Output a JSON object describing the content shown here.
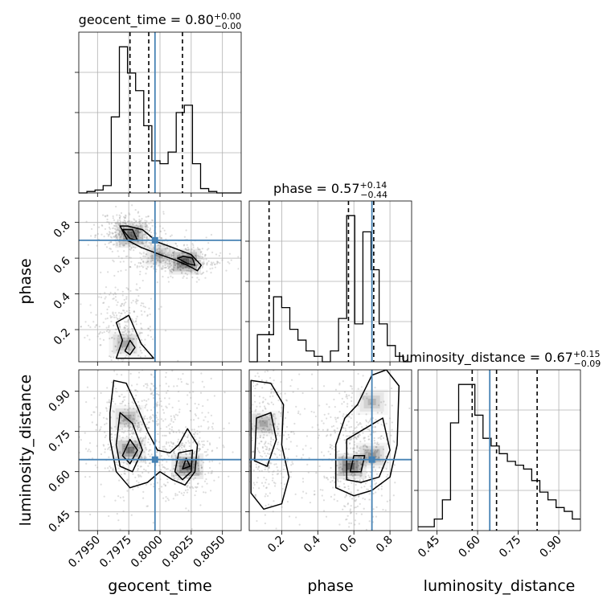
{
  "chart_data": {
    "type": "corner",
    "parameters": [
      "geocent_time",
      "phase",
      "luminosity_distance"
    ],
    "titles": {
      "geocent_time": {
        "label": "geocent_time",
        "median": "0.80",
        "plus": "+0.00",
        "minus": "−0.00"
      },
      "phase": {
        "label": "phase",
        "median": "0.57",
        "plus": "+0.14",
        "minus": "−0.44"
      },
      "luminosity_distance": {
        "label": "luminosity_distance",
        "median": "0.67",
        "plus": "+0.15",
        "minus": "−0.09"
      }
    },
    "injection": {
      "geocent_time": 0.7996,
      "phase": 0.7,
      "luminosity_distance": 0.645
    },
    "ranges": {
      "geocent_time": [
        0.7935,
        0.8065
      ],
      "phase": [
        0.02,
        0.92
      ],
      "luminosity_distance": [
        0.38,
        0.98
      ]
    },
    "axis_ticks": {
      "geocent_time": [
        "0.7950",
        "0.7975",
        "0.8000",
        "0.8025",
        "0.8050"
      ],
      "phase": [
        "0.2",
        "0.4",
        "0.6",
        "0.8"
      ],
      "luminosity_distance": [
        "0.45",
        "0.60",
        "0.75",
        "0.90"
      ]
    },
    "quantiles": {
      "geocent_time": [
        0.7976,
        0.7991,
        0.8018
      ],
      "phase": [
        0.13,
        0.57,
        0.71
      ],
      "luminosity_distance": [
        0.58,
        0.67,
        0.82
      ]
    },
    "histograms": {
      "geocent_time": {
        "edges": [
          0.7935,
          0.79415,
          0.7948,
          0.79545,
          0.7961,
          0.79675,
          0.7974,
          0.79805,
          0.7987,
          0.79935,
          0.8,
          0.80065,
          0.8013,
          0.80195,
          0.8026,
          0.80325,
          0.8039,
          0.80455,
          0.8052,
          0.80585,
          0.8065
        ],
        "counts": [
          0,
          1,
          2,
          5,
          52,
          100,
          82,
          70,
          46,
          22,
          20,
          28,
          55,
          60,
          20,
          3,
          1,
          0,
          0,
          0
        ]
      },
      "phase": {
        "edges": [
          0.02,
          0.065,
          0.11,
          0.155,
          0.2,
          0.245,
          0.29,
          0.335,
          0.38,
          0.425,
          0.47,
          0.515,
          0.56,
          0.605,
          0.65,
          0.695,
          0.74,
          0.785,
          0.83,
          0.875,
          0.92
        ],
        "counts": [
          0,
          5,
          5,
          12,
          10,
          6,
          4,
          2,
          1,
          0,
          2,
          8,
          27,
          7,
          24,
          17,
          7,
          3,
          1,
          0
        ]
      },
      "luminosity_distance": {
        "edges": [
          0.38,
          0.41,
          0.44,
          0.47,
          0.5,
          0.53,
          0.56,
          0.59,
          0.62,
          0.65,
          0.68,
          0.71,
          0.74,
          0.77,
          0.8,
          0.83,
          0.86,
          0.89,
          0.92,
          0.95,
          0.98
        ],
        "counts": [
          1,
          1,
          3,
          8,
          28,
          38,
          38,
          30,
          24,
          22,
          20,
          18,
          17,
          16,
          13,
          10,
          8,
          6,
          5,
          3
        ]
      }
    },
    "contours": {
      "phase|geocent_time": [
        [
          [
            0.7968,
            0.78
          ],
          [
            0.7974,
            0.7
          ],
          [
            0.7985,
            0.66
          ],
          [
            0.8,
            0.62
          ],
          [
            0.8012,
            0.59
          ],
          [
            0.8022,
            0.56
          ],
          [
            0.803,
            0.53
          ],
          [
            0.8033,
            0.56
          ],
          [
            0.8025,
            0.62
          ],
          [
            0.801,
            0.66
          ],
          [
            0.7998,
            0.69
          ],
          [
            0.7986,
            0.76
          ],
          [
            0.7974,
            0.78
          ]
        ],
        [
          [
            0.797,
            0.76
          ],
          [
            0.7976,
            0.71
          ],
          [
            0.7982,
            0.7
          ],
          [
            0.7978,
            0.76
          ]
        ],
        [
          [
            0.8014,
            0.6
          ],
          [
            0.8022,
            0.57
          ],
          [
            0.8028,
            0.56
          ],
          [
            0.8026,
            0.6
          ],
          [
            0.8019,
            0.61
          ]
        ],
        [
          [
            0.7965,
            0.04
          ],
          [
            0.797,
            0.14
          ],
          [
            0.7965,
            0.24
          ],
          [
            0.7975,
            0.28
          ],
          [
            0.798,
            0.2
          ],
          [
            0.7985,
            0.12
          ],
          [
            0.7995,
            0.04
          ]
        ],
        [
          [
            0.7972,
            0.08
          ],
          [
            0.7976,
            0.14
          ],
          [
            0.798,
            0.1
          ],
          [
            0.7976,
            0.06
          ]
        ]
      ],
      "luminosity_distance|geocent_time": [
        [
          [
            0.796,
            0.82
          ],
          [
            0.7963,
            0.94
          ],
          [
            0.7973,
            0.93
          ],
          [
            0.7982,
            0.84
          ],
          [
            0.799,
            0.75
          ],
          [
            0.7998,
            0.68
          ],
          [
            0.8008,
            0.67
          ],
          [
            0.8015,
            0.7
          ],
          [
            0.8022,
            0.76
          ],
          [
            0.803,
            0.7
          ],
          [
            0.8028,
            0.6
          ],
          [
            0.802,
            0.55
          ],
          [
            0.801,
            0.57
          ],
          [
            0.8,
            0.6
          ],
          [
            0.799,
            0.56
          ],
          [
            0.7976,
            0.54
          ],
          [
            0.7965,
            0.6
          ],
          [
            0.796,
            0.72
          ]
        ],
        [
          [
            0.7965,
            0.7
          ],
          [
            0.7968,
            0.82
          ],
          [
            0.7978,
            0.78
          ],
          [
            0.7986,
            0.68
          ],
          [
            0.7978,
            0.6
          ],
          [
            0.7968,
            0.62
          ]
        ],
        [
          [
            0.8012,
            0.6
          ],
          [
            0.8015,
            0.67
          ],
          [
            0.8026,
            0.68
          ],
          [
            0.8025,
            0.6
          ],
          [
            0.8018,
            0.57
          ]
        ],
        [
          [
            0.797,
            0.66
          ],
          [
            0.7976,
            0.72
          ],
          [
            0.7982,
            0.68
          ],
          [
            0.7976,
            0.63
          ]
        ],
        [
          [
            0.8018,
            0.61
          ],
          [
            0.8021,
            0.65
          ],
          [
            0.8024,
            0.62
          ]
        ]
      ],
      "luminosity_distance|phase": [
        [
          [
            0.03,
            0.94
          ],
          [
            0.14,
            0.93
          ],
          [
            0.21,
            0.85
          ],
          [
            0.2,
            0.7
          ],
          [
            0.24,
            0.58
          ],
          [
            0.2,
            0.48
          ],
          [
            0.1,
            0.46
          ],
          [
            0.03,
            0.52
          ]
        ],
        [
          [
            0.06,
            0.8
          ],
          [
            0.14,
            0.82
          ],
          [
            0.17,
            0.72
          ],
          [
            0.12,
            0.62
          ],
          [
            0.05,
            0.64
          ]
        ],
        [
          [
            0.5,
            0.54
          ],
          [
            0.5,
            0.7
          ],
          [
            0.55,
            0.8
          ],
          [
            0.62,
            0.85
          ],
          [
            0.7,
            0.96
          ],
          [
            0.78,
            0.98
          ],
          [
            0.85,
            0.92
          ],
          [
            0.84,
            0.7
          ],
          [
            0.8,
            0.58
          ],
          [
            0.7,
            0.53
          ],
          [
            0.6,
            0.51
          ]
        ],
        [
          [
            0.56,
            0.57
          ],
          [
            0.56,
            0.72
          ],
          [
            0.66,
            0.76
          ],
          [
            0.76,
            0.8
          ],
          [
            0.8,
            0.68
          ],
          [
            0.74,
            0.58
          ],
          [
            0.64,
            0.56
          ]
        ],
        [
          [
            0.58,
            0.6
          ],
          [
            0.6,
            0.66
          ],
          [
            0.66,
            0.66
          ],
          [
            0.64,
            0.6
          ]
        ]
      ]
    },
    "density_hotspots": {
      "phase|geocent_time": [
        [
          0.7977,
          0.73,
          0.9
        ],
        [
          0.802,
          0.58,
          1.0
        ],
        [
          0.7999,
          0.62,
          0.4
        ],
        [
          0.7972,
          0.12,
          0.5
        ]
      ],
      "luminosity_distance|geocent_time": [
        [
          0.7976,
          0.68,
          0.8
        ],
        [
          0.8022,
          0.62,
          1.0
        ],
        [
          0.7974,
          0.8,
          0.5
        ]
      ],
      "luminosity_distance|phase": [
        [
          0.58,
          0.62,
          1.0
        ],
        [
          0.7,
          0.66,
          0.6
        ],
        [
          0.1,
          0.78,
          0.5
        ],
        [
          0.7,
          0.86,
          0.4
        ]
      ]
    },
    "scatter_clusters": {
      "phase|geocent_time": [
        [
          0.7975,
          0.76,
          0.0012,
          0.05,
          320
        ],
        [
          0.8018,
          0.58,
          0.0016,
          0.04,
          320
        ],
        [
          0.7995,
          0.65,
          0.0018,
          0.06,
          160
        ],
        [
          0.7972,
          0.22,
          0.0014,
          0.12,
          300
        ]
      ],
      "luminosity_distance|geocent_time": [
        [
          0.7976,
          0.74,
          0.0016,
          0.12,
          420
        ],
        [
          0.802,
          0.64,
          0.0012,
          0.08,
          320
        ],
        [
          0.8,
          0.82,
          0.003,
          0.14,
          180
        ]
      ],
      "luminosity_distance|phase": [
        [
          0.62,
          0.68,
          0.09,
          0.13,
          460
        ],
        [
          0.12,
          0.72,
          0.07,
          0.14,
          340
        ],
        [
          0.4,
          0.7,
          0.2,
          0.15,
          120
        ]
      ]
    },
    "colors": {
      "truth": "#4682b4",
      "line": "#000000",
      "grid": "#b0b0b0",
      "points": "#9e9e9e"
    }
  }
}
